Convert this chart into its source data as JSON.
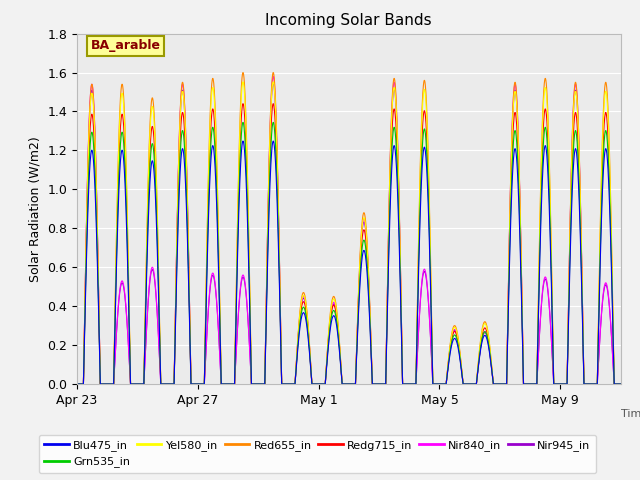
{
  "title": "Incoming Solar Bands",
  "ylabel": "Solar Radiation (W/m2)",
  "annotation": "BA_arable",
  "ylim": [
    0,
    1.8
  ],
  "yticks": [
    0.0,
    0.2,
    0.4,
    0.6,
    0.8,
    1.0,
    1.2,
    1.4,
    1.6,
    1.8
  ],
  "xtick_labels": [
    "Apr 23",
    "Apr 27",
    "May 1",
    "May 5",
    "May 9"
  ],
  "xtick_positions": [
    0,
    4,
    8,
    12,
    16
  ],
  "n_days": 18,
  "pts_per_day": 288,
  "lines": {
    "Blu475_in": {
      "color": "#0000ee"
    },
    "Grn535_in": {
      "color": "#00cc00"
    },
    "Yel580_in": {
      "color": "#ffff00"
    },
    "Red655_in": {
      "color": "#ff8800"
    },
    "Redg715_in": {
      "color": "#ff0000"
    },
    "Nir840_in": {
      "color": "#ff00ff"
    },
    "Nir945_in": {
      "color": "#9900cc"
    }
  },
  "bg_color": "#e8e8e8",
  "plot_bg": "#ebebeb",
  "grid_color": "#ffffff",
  "annotation_facecolor": "#ffff99",
  "annotation_edgecolor": "#999900",
  "annotation_textcolor": "#880000",
  "fig_facecolor": "#f2f2f2",
  "peaks_orange": [
    1.54,
    1.54,
    1.47,
    1.55,
    1.57,
    1.6,
    1.6,
    0.47,
    0.45,
    0.88,
    1.57,
    1.56,
    0.3,
    0.32,
    1.55,
    1.57,
    1.55,
    1.55
  ],
  "peaks_magenta": [
    1.54,
    0.53,
    0.6,
    1.54,
    0.57,
    0.56,
    1.58,
    0.45,
    0.42,
    0.85,
    1.55,
    0.59,
    0.28,
    0.27,
    1.54,
    0.55,
    1.54,
    0.52
  ],
  "day_rise": 0.22,
  "day_set": 0.78,
  "lw": 0.8
}
